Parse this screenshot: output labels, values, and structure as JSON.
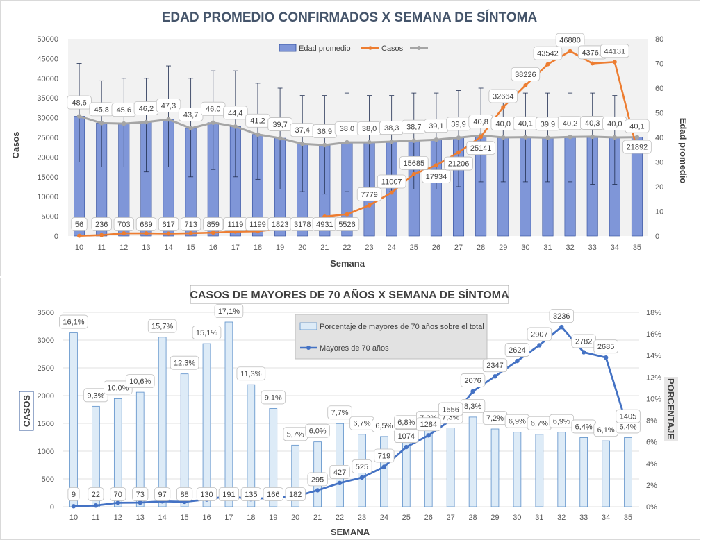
{
  "chart_data": [
    {
      "type": "bar",
      "title": "EDAD PROMEDIO CONFIRMADOS X SEMANA DE SÍNTOMA",
      "xlabel": "Semana",
      "ylabel_left": "Casos",
      "ylabel_right": "Edad promedio",
      "categories": [
        "10",
        "11",
        "12",
        "13",
        "14",
        "15",
        "16",
        "17",
        "18",
        "19",
        "20",
        "21",
        "22",
        "23",
        "24",
        "25",
        "26",
        "27",
        "28",
        "29",
        "30",
        "31",
        "32",
        "33",
        "34",
        "35"
      ],
      "left_axis": {
        "min": 0,
        "max": 50000,
        "ticks": [
          "0",
          "5000",
          "10000",
          "15000",
          "20000",
          "25000",
          "30000",
          "35000",
          "40000",
          "45000",
          "50000"
        ]
      },
      "right_axis": {
        "min": 0,
        "max": 80,
        "ticks": [
          "0",
          "10",
          "20",
          "30",
          "40",
          "50",
          "60",
          "70",
          "80"
        ]
      },
      "legend": {
        "position": "top",
        "entries": [
          "Edad promedio",
          "Casos",
          ""
        ]
      },
      "grid": false,
      "series": [
        {
          "name": "Edad promedio",
          "kind": "bar",
          "axis": "right",
          "color": "#7f96d8",
          "values": [
            48.6,
            45.8,
            45.6,
            46.2,
            47.3,
            43.7,
            46.0,
            44.4,
            41.2,
            39.7,
            37.4,
            36.9,
            38.0,
            38.0,
            38.3,
            38.7,
            39.1,
            39.9,
            40.8,
            40.0,
            40.1,
            39.9,
            40.2,
            40.3,
            40.0,
            40.1
          ],
          "error_upper": [
            70,
            63,
            64,
            64,
            69,
            64,
            67,
            67,
            62,
            60,
            57,
            57,
            58,
            57,
            57,
            58,
            58,
            59,
            60,
            58,
            58,
            58,
            58,
            58,
            57,
            null
          ],
          "error_lower": [
            30,
            28,
            28,
            26,
            28,
            24,
            27,
            24,
            23,
            19,
            18,
            17,
            18,
            18,
            18,
            19,
            19,
            20,
            22,
            22,
            22,
            22,
            22,
            21,
            21,
            null
          ],
          "labels": [
            "48,6",
            "45,8",
            "45,6",
            "46,2",
            "47,3",
            "43,7",
            "46,0",
            "44,4",
            "41,2",
            "39,7",
            "37,4",
            "36,9",
            "38,0",
            "38,0",
            "38,3",
            "38,7",
            "39,1",
            "39,9",
            "40,8",
            "40,0",
            "40,1",
            "39,9",
            "40,2",
            "40,3",
            "40,0",
            "40,1"
          ]
        },
        {
          "name": "Casos",
          "kind": "line",
          "axis": "left",
          "color": "#ed7d31",
          "values": [
            56,
            236,
            703,
            689,
            617,
            713,
            859,
            1119,
            1199,
            1823,
            3178,
            4931,
            5526,
            7779,
            11007,
            15685,
            17934,
            21206,
            25141,
            32664,
            38226,
            43542,
            46880,
            43761,
            44131,
            21892
          ],
          "labels": [
            "56",
            "236",
            "703",
            "689",
            "617",
            "713",
            "859",
            "1119",
            "1199",
            "1823",
            "3178",
            "4931",
            "5526",
            "7779",
            "11007",
            "15685",
            "17934",
            "21206",
            "25141",
            "32664",
            "38226",
            "43542",
            "46880",
            "43761",
            "44131",
            "21892"
          ]
        },
        {
          "kind": "line",
          "axis": "right",
          "color": "#a5a5a5",
          "values": [
            48.6,
            45.8,
            45.6,
            46.2,
            47.3,
            43.7,
            46.0,
            44.4,
            41.2,
            39.7,
            37.4,
            36.9,
            38.0,
            38.0,
            38.3,
            38.7,
            39.1,
            39.9,
            40.8,
            40.0,
            40.1,
            39.9,
            40.2,
            40.3,
            40.0,
            40.1
          ]
        }
      ]
    },
    {
      "type": "bar",
      "title": "CASOS DE MAYORES DE 70 AÑOS X SEMANA DE SÍNTOMA",
      "xlabel": "SEMANA",
      "ylabel_left": "CASOS",
      "ylabel_right": "PORCENTAJE",
      "categories": [
        "10",
        "11",
        "12",
        "13",
        "14",
        "15",
        "16",
        "17",
        "18",
        "19",
        "20",
        "21",
        "22",
        "23",
        "24",
        "25",
        "26",
        "27",
        "28",
        "29",
        "30",
        "31",
        "32",
        "33",
        "34",
        "35"
      ],
      "left_axis": {
        "min": 0,
        "max": 3500,
        "ticks": [
          "0",
          "500",
          "1000",
          "1500",
          "2000",
          "2500",
          "3000",
          "3500"
        ]
      },
      "right_axis": {
        "min": 0,
        "max": 18,
        "ticks": [
          "0%",
          "2%",
          "4%",
          "6%",
          "8%",
          "10%",
          "12%",
          "14%",
          "16%",
          "18%"
        ]
      },
      "legend": {
        "position": "top-right",
        "entries": [
          "Porcentaje de mayores de 70 años sobre el total",
          "Mayores de 70 años"
        ]
      },
      "grid": true,
      "series": [
        {
          "name": "Porcentaje de mayores de 70 años sobre el total",
          "kind": "bar",
          "axis": "right",
          "color": "#ddebf7",
          "values": [
            16.1,
            9.3,
            10.0,
            10.6,
            15.7,
            12.3,
            15.1,
            17.1,
            11.3,
            9.1,
            5.7,
            6.0,
            7.7,
            6.7,
            6.5,
            6.8,
            7.2,
            7.3,
            8.3,
            7.2,
            6.9,
            6.7,
            6.9,
            6.4,
            6.1,
            6.4
          ],
          "labels": [
            "16,1%",
            "9,3%",
            "10,0%",
            "10,6%",
            "15,7%",
            "12,3%",
            "15,1%",
            "17,1%",
            "11,3%",
            "9,1%",
            "5,7%",
            "6,0%",
            "7,7%",
            "6,7%",
            "6,5%",
            "6,8%",
            "7,2%",
            "7,3%",
            "8,3%",
            "7,2%",
            "6,9%",
            "6,7%",
            "6,9%",
            "6,4%",
            "6,1%",
            "6,4%"
          ]
        },
        {
          "name": "Mayores de 70 años",
          "kind": "line",
          "axis": "left",
          "color": "#4472c4",
          "values": [
            9,
            22,
            70,
            73,
            97,
            88,
            130,
            191,
            135,
            166,
            182,
            295,
            427,
            525,
            719,
            1074,
            1284,
            1556,
            2076,
            2347,
            2624,
            2907,
            3236,
            2782,
            2685,
            1405
          ],
          "labels": [
            "9",
            "22",
            "70",
            "73",
            "97",
            "88",
            "130",
            "191",
            "135",
            "166",
            "182",
            "295",
            "427",
            "525",
            "719",
            "1074",
            "1284",
            "1556",
            "2076",
            "2347",
            "2624",
            "2907",
            "3236",
            "2782",
            "2685",
            "1405"
          ]
        }
      ]
    }
  ]
}
